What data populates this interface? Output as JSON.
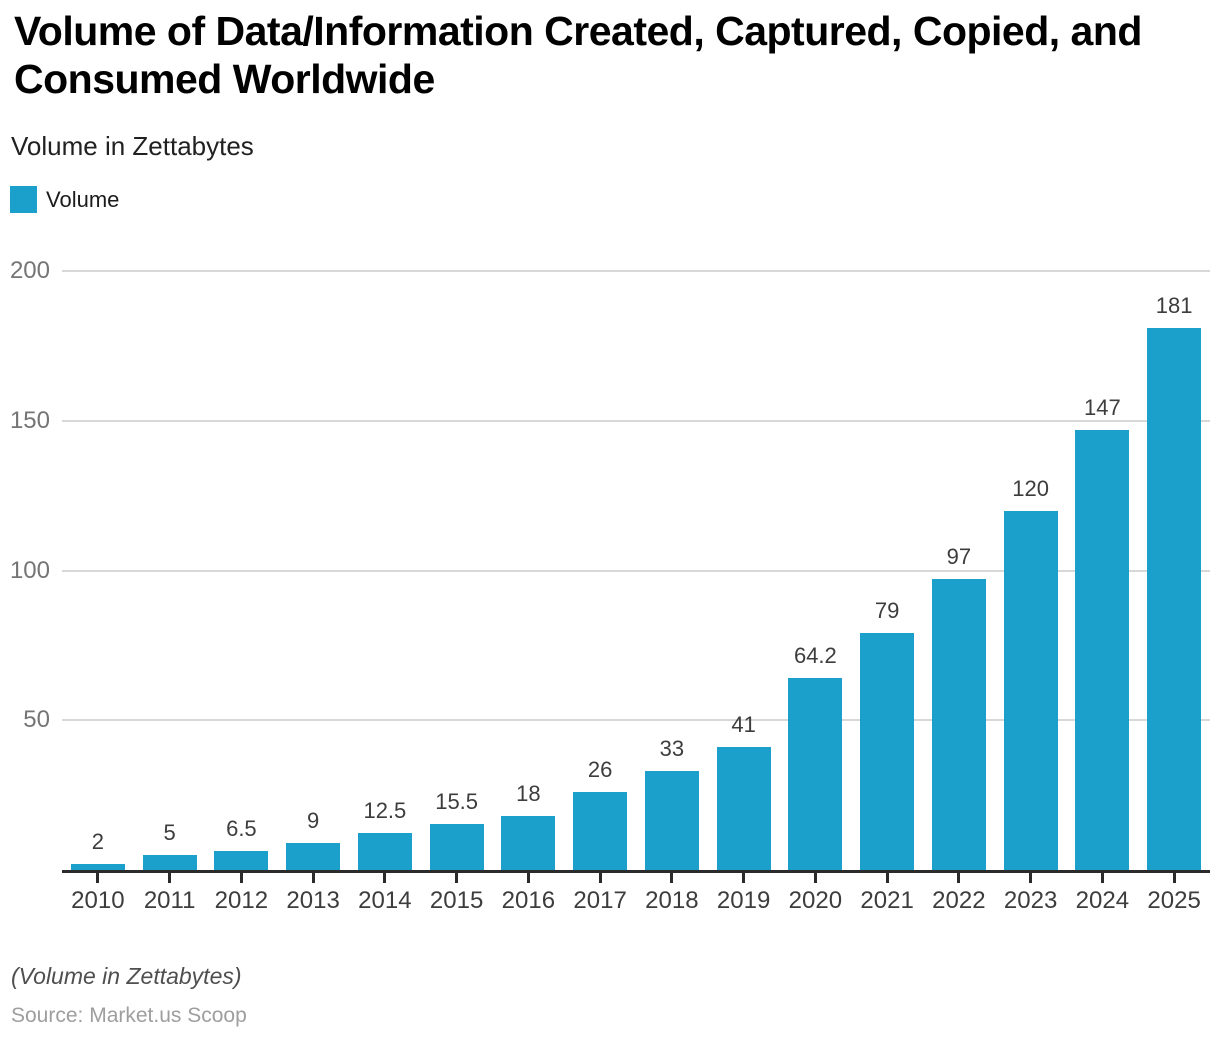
{
  "header": {
    "title": "Volume of Data/Information Created, Captured, Copied, and Consumed Worldwide",
    "subtitle": "Volume in Zettabytes"
  },
  "legend": {
    "items": [
      {
        "label": "Volume",
        "color": "#1BA0CC"
      }
    ]
  },
  "chart_data": {
    "type": "bar",
    "title": "Volume of Data/Information Created, Captured, Copied, and Consumed Worldwide",
    "subtitle": "Volume in Zettabytes",
    "categories": [
      "2010",
      "2011",
      "2012",
      "2013",
      "2014",
      "2015",
      "2016",
      "2017",
      "2018",
      "2019",
      "2020",
      "2021",
      "2022",
      "2023",
      "2024",
      "2025"
    ],
    "series": [
      {
        "name": "Volume",
        "values": [
          2,
          5,
          6.5,
          9,
          12.5,
          15.5,
          18,
          26,
          33,
          41,
          64.2,
          79,
          97,
          120,
          147,
          181
        ]
      }
    ],
    "value_labels": [
      "2",
      "5",
      "6.5",
      "9",
      "12.5",
      "15.5",
      "18",
      "26",
      "33",
      "41",
      "64.2",
      "79",
      "97",
      "120",
      "147",
      "181"
    ],
    "xlabel": "",
    "ylabel": "",
    "ylim": [
      0,
      200
    ],
    "yticks": [
      50,
      100,
      150,
      200
    ],
    "grid": true,
    "legend_position": "top-left",
    "bar_color": "#1BA0CC"
  },
  "colors": {
    "bar": "#1BA0CC",
    "gridline": "#D8D8D8",
    "axis": "#2B2B2B",
    "y_tick_label": "#757575",
    "x_tick_label": "#3D3D3D",
    "value_label": "#3D3D3D"
  },
  "footer": {
    "note": "(Volume in Zettabytes)",
    "source": "Source: Market.us Scoop"
  }
}
